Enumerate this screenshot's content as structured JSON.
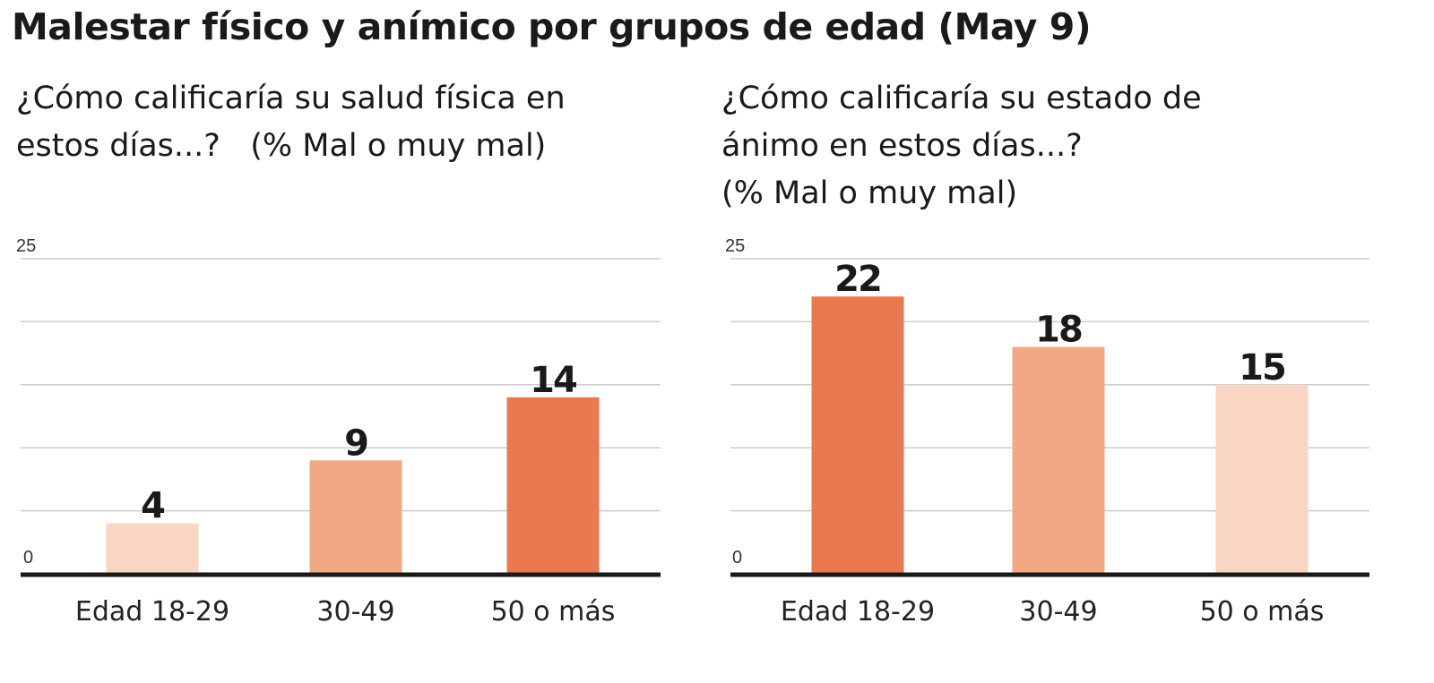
{
  "title": "Malestar físico y anímico por grupos de edad (May 9)",
  "chart_data": [
    {
      "type": "bar",
      "title": "¿Cómo calificaría su salud física en estos días...?   (% Mal o muy mal)",
      "title_lines": [
        "¿Cómo calificaría su salud física en",
        "estos días...?   (% Mal o muy mal)"
      ],
      "categories": [
        "Edad 18-29",
        "30-49",
        "50 o más"
      ],
      "values": [
        4,
        9,
        14
      ],
      "colors": [
        "#f9d5c3",
        "#f2a884",
        "#ea7850"
      ],
      "xlabel": "",
      "ylabel": "",
      "ylim": [
        0,
        25
      ],
      "yticks_labeled": [
        "0",
        "25"
      ],
      "gridlines": [
        0,
        5,
        10,
        15,
        20,
        25
      ],
      "grid": true
    },
    {
      "type": "bar",
      "title": "¿Cómo calificaría su estado de ánimo en estos días...? (% Mal o muy mal)",
      "title_lines": [
        "¿Cómo calificaría su estado de",
        "ánimo en estos días...?",
        "(% Mal o muy mal)"
      ],
      "categories": [
        "Edad 18-29",
        "30-49",
        "50 o más"
      ],
      "values": [
        22,
        18,
        15
      ],
      "colors": [
        "#ea7850",
        "#f2a884",
        "#f9d5c3"
      ],
      "xlabel": "",
      "ylabel": "",
      "ylim": [
        0,
        25
      ],
      "yticks_labeled": [
        "0",
        "25"
      ],
      "gridlines": [
        0,
        5,
        10,
        15,
        20,
        25
      ],
      "grid": true
    }
  ],
  "colors": {
    "grid": "#cccccc",
    "axis": "#1a1a1a"
  }
}
